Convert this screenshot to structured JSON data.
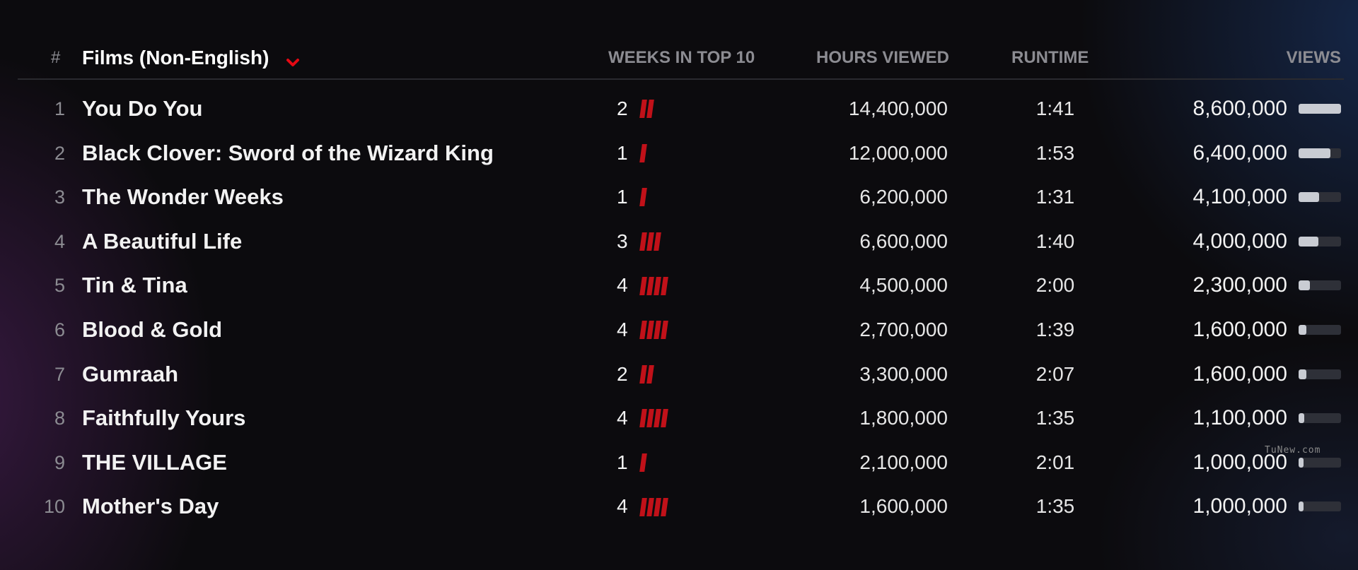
{
  "header": {
    "rank_label": "#",
    "category_label": "Films (Non-English)",
    "category_icon": "chevron-down-icon",
    "weeks_label": "WEEKS IN TOP 10",
    "hours_label": "HOURS VIEWED",
    "runtime_label": "RUNTIME",
    "views_label": "VIEWS"
  },
  "colors": {
    "accent_red": "#c11119",
    "background": "#0c0b0e",
    "bar_fill": "#c9ccd3",
    "bar_track": "#2e3038"
  },
  "rows": [
    {
      "rank": "1",
      "title": "You Do You",
      "weeks": 2,
      "weeks_text": "2",
      "hours": "14,400,000",
      "runtime": "1:41",
      "views": "8,600,000",
      "views_value": 8600000
    },
    {
      "rank": "2",
      "title": "Black Clover: Sword of the Wizard King",
      "weeks": 1,
      "weeks_text": "1",
      "hours": "12,000,000",
      "runtime": "1:53",
      "views": "6,400,000",
      "views_value": 6400000
    },
    {
      "rank": "3",
      "title": "The Wonder Weeks",
      "weeks": 1,
      "weeks_text": "1",
      "hours": "6,200,000",
      "runtime": "1:31",
      "views": "4,100,000",
      "views_value": 4100000
    },
    {
      "rank": "4",
      "title": "A Beautiful Life",
      "weeks": 3,
      "weeks_text": "3",
      "hours": "6,600,000",
      "runtime": "1:40",
      "views": "4,000,000",
      "views_value": 4000000
    },
    {
      "rank": "5",
      "title": "Tin & Tina",
      "weeks": 4,
      "weeks_text": "4",
      "hours": "4,500,000",
      "runtime": "2:00",
      "views": "2,300,000",
      "views_value": 2300000
    },
    {
      "rank": "6",
      "title": "Blood & Gold",
      "weeks": 4,
      "weeks_text": "4",
      "hours": "2,700,000",
      "runtime": "1:39",
      "views": "1,600,000",
      "views_value": 1600000
    },
    {
      "rank": "7",
      "title": "Gumraah",
      "weeks": 2,
      "weeks_text": "2",
      "hours": "3,300,000",
      "runtime": "2:07",
      "views": "1,600,000",
      "views_value": 1600000
    },
    {
      "rank": "8",
      "title": "Faithfully Yours",
      "weeks": 4,
      "weeks_text": "4",
      "hours": "1,800,000",
      "runtime": "1:35",
      "views": "1,100,000",
      "views_value": 1100000
    },
    {
      "rank": "9",
      "title": "THE VILLAGE",
      "weeks": 1,
      "weeks_text": "1",
      "hours": "2,100,000",
      "runtime": "2:01",
      "views": "1,000,000",
      "views_value": 1000000
    },
    {
      "rank": "10",
      "title": "Mother's Day",
      "weeks": 4,
      "weeks_text": "4",
      "hours": "1,600,000",
      "runtime": "1:35",
      "views": "1,000,000",
      "views_value": 1000000
    }
  ],
  "views_scale_max": 8600000,
  "watermark": "TuNew.com"
}
